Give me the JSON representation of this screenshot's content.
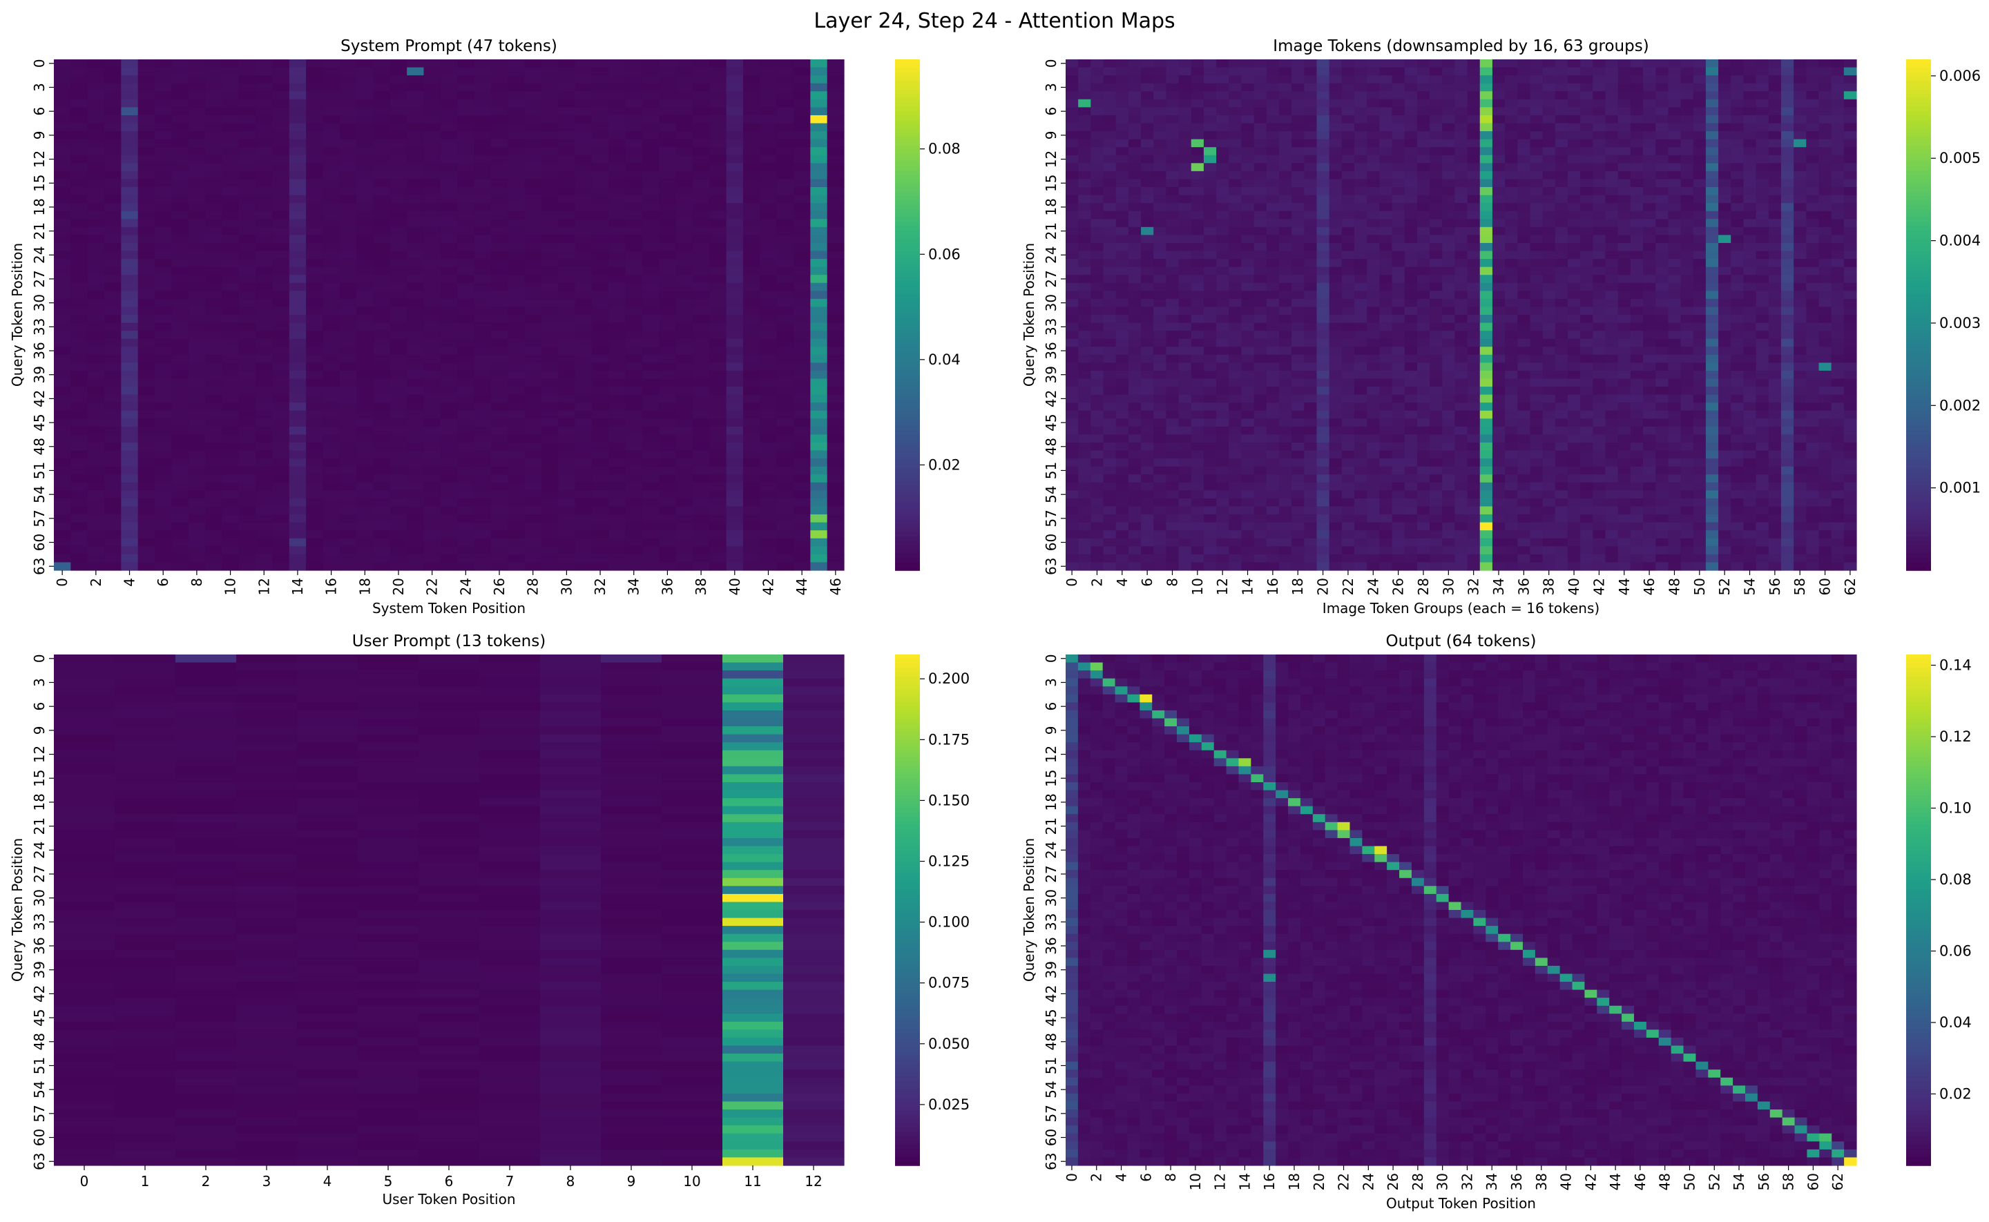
{
  "figure_title": "Layer 24, Step 24 - Attention Maps",
  "colormap": "viridis",
  "chart_data": [
    {
      "type": "heatmap",
      "title": "System Prompt (47 tokens)",
      "xlabel": "System Token Position",
      "ylabel": "Query Token Position",
      "n_rows": 64,
      "n_cols": 47,
      "x_tick_labels": [
        "0",
        "2",
        "4",
        "6",
        "8",
        "10",
        "12",
        "14",
        "16",
        "18",
        "20",
        "22",
        "24",
        "26",
        "28",
        "30",
        "32",
        "34",
        "36",
        "38",
        "40",
        "42",
        "44",
        "46"
      ],
      "y_tick_labels": [
        "0",
        "3",
        "6",
        "9",
        "12",
        "15",
        "18",
        "21",
        "24",
        "27",
        "30",
        "33",
        "36",
        "39",
        "42",
        "45",
        "48",
        "51",
        "54",
        "57",
        "60",
        "63"
      ],
      "colorbar_range": [
        0.0,
        0.097
      ],
      "colorbar_ticks": [
        "0.02",
        "0.04",
        "0.06",
        "0.08"
      ],
      "base_value": 0.002,
      "column_values": [
        [
          4,
          0.012
        ],
        [
          14,
          0.009
        ],
        [
          40,
          0.007
        ],
        [
          45,
          0.045
        ]
      ],
      "row_values": [],
      "cell_values": [
        [
          7,
          45,
          0.097
        ],
        [
          57,
          45,
          0.075
        ],
        [
          59,
          45,
          0.08
        ],
        [
          27,
          45,
          0.062
        ],
        [
          11,
          45,
          0.055
        ],
        [
          1,
          21,
          0.035
        ],
        [
          63,
          0,
          0.03
        ],
        [
          6,
          4,
          0.025
        ],
        [
          19,
          4,
          0.02
        ],
        [
          60,
          14,
          0.015
        ]
      ]
    },
    {
      "type": "heatmap",
      "title": "Image Tokens (downsampled by 16, 63 groups)",
      "xlabel": "Image Token Groups (each = 16 tokens)",
      "ylabel": "Query Token Position",
      "n_rows": 64,
      "n_cols": 63,
      "x_tick_labels": [
        "0",
        "2",
        "4",
        "6",
        "8",
        "10",
        "12",
        "14",
        "16",
        "18",
        "20",
        "22",
        "24",
        "26",
        "28",
        "30",
        "32",
        "34",
        "36",
        "38",
        "40",
        "42",
        "44",
        "46",
        "48",
        "50",
        "52",
        "54",
        "56",
        "58",
        "60",
        "62"
      ],
      "y_tick_labels": [
        "0",
        "3",
        "6",
        "9",
        "12",
        "15",
        "18",
        "21",
        "24",
        "27",
        "30",
        "33",
        "36",
        "39",
        "42",
        "45",
        "48",
        "51",
        "54",
        "57",
        "60",
        "63"
      ],
      "colorbar_range": [
        0.0,
        0.0062
      ],
      "colorbar_ticks": [
        "0.001",
        "0.002",
        "0.003",
        "0.004",
        "0.005",
        "0.006"
      ],
      "base_value": 0.0004,
      "column_values": [
        [
          33,
          0.0042
        ],
        [
          51,
          0.0018
        ],
        [
          20,
          0.0009
        ],
        [
          57,
          0.0011
        ]
      ],
      "row_values": [],
      "cell_values": [
        [
          58,
          33,
          0.0062
        ],
        [
          7,
          33,
          0.0055
        ],
        [
          26,
          33,
          0.005
        ],
        [
          10,
          10,
          0.0045
        ],
        [
          11,
          11,
          0.0042
        ],
        [
          13,
          10,
          0.0048
        ],
        [
          12,
          11,
          0.0035
        ],
        [
          5,
          1,
          0.004
        ],
        [
          4,
          62,
          0.0035
        ],
        [
          1,
          62,
          0.0025
        ],
        [
          10,
          58,
          0.003
        ],
        [
          21,
          6,
          0.0028
        ],
        [
          22,
          52,
          0.0032
        ],
        [
          38,
          60,
          0.003
        ],
        [
          1,
          51,
          0.0025
        ]
      ]
    },
    {
      "type": "heatmap",
      "title": "User Prompt (13 tokens)",
      "xlabel": "User Token Position",
      "ylabel": "Query Token Position",
      "n_rows": 64,
      "n_cols": 13,
      "x_tick_labels": [
        "0",
        "1",
        "2",
        "3",
        "4",
        "5",
        "6",
        "7",
        "8",
        "9",
        "10",
        "11",
        "12"
      ],
      "y_tick_labels": [
        "0",
        "3",
        "6",
        "9",
        "12",
        "15",
        "18",
        "21",
        "24",
        "27",
        "30",
        "33",
        "36",
        "39",
        "42",
        "45",
        "48",
        "51",
        "54",
        "57",
        "60",
        "63"
      ],
      "colorbar_range": [
        0.0,
        0.21
      ],
      "colorbar_ticks": [
        "0.025",
        "0.050",
        "0.075",
        "0.100",
        "0.125",
        "0.150",
        "0.175",
        "0.200"
      ],
      "base_value": 0.004,
      "column_values": [
        [
          11,
          0.12
        ],
        [
          12,
          0.012
        ],
        [
          8,
          0.008
        ]
      ],
      "row_values": [],
      "cell_values": [
        [
          30,
          11,
          0.21
        ],
        [
          33,
          11,
          0.2
        ],
        [
          63,
          11,
          0.2
        ],
        [
          28,
          11,
          0.17
        ],
        [
          0,
          11,
          0.15
        ],
        [
          15,
          11,
          0.14
        ],
        [
          2,
          11,
          0.05
        ],
        [
          0,
          2,
          0.03
        ],
        [
          0,
          9,
          0.02
        ]
      ]
    },
    {
      "type": "heatmap",
      "title": "Output (64 tokens)",
      "xlabel": "Output Token Position",
      "ylabel": "Query Token Position",
      "n_rows": 64,
      "n_cols": 64,
      "x_tick_labels": [
        "0",
        "2",
        "4",
        "6",
        "8",
        "10",
        "12",
        "14",
        "16",
        "18",
        "20",
        "22",
        "24",
        "26",
        "28",
        "30",
        "32",
        "34",
        "36",
        "38",
        "40",
        "42",
        "44",
        "46",
        "48",
        "50",
        "52",
        "54",
        "56",
        "58",
        "60",
        "62"
      ],
      "y_tick_labels": [
        "0",
        "3",
        "6",
        "9",
        "12",
        "15",
        "18",
        "21",
        "24",
        "27",
        "30",
        "33",
        "36",
        "39",
        "42",
        "45",
        "48",
        "51",
        "54",
        "57",
        "60",
        "63"
      ],
      "colorbar_range": [
        0.0,
        0.143
      ],
      "colorbar_ticks": [
        "0.02",
        "0.04",
        "0.06",
        "0.08",
        "0.10",
        "0.12",
        "0.14"
      ],
      "base_value": 0.006,
      "column_values": [
        [
          0,
          0.03
        ],
        [
          16,
          0.02
        ],
        [
          29,
          0.015
        ]
      ],
      "row_values": [],
      "diagonal_value": 0.085,
      "cell_values": [
        [
          63,
          63,
          0.143
        ],
        [
          5,
          6,
          0.14
        ],
        [
          21,
          22,
          0.13
        ],
        [
          24,
          25,
          0.135
        ],
        [
          13,
          14,
          0.12
        ],
        [
          1,
          2,
          0.11
        ],
        [
          60,
          61,
          0.1
        ],
        [
          37,
          16,
          0.07
        ],
        [
          40,
          16,
          0.07
        ],
        [
          62,
          60,
          0.08
        ]
      ]
    }
  ]
}
